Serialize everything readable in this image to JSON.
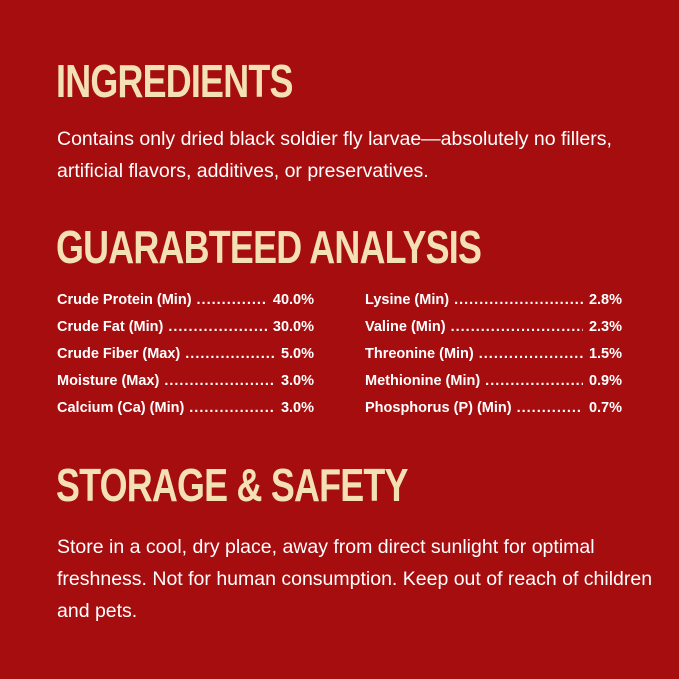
{
  "ingredients": {
    "heading": "INGREDIENTS",
    "text": "Contains only dried black soldier fly larvae—absolutely no fillers, artificial flavors, additives, or preservatives."
  },
  "analysis": {
    "heading": "GUARABTEED ANALYSIS",
    "left": [
      {
        "label": "Crude Protein (Min)",
        "value": "40.0%"
      },
      {
        "label": "Crude Fat (Min)",
        "value": "30.0%"
      },
      {
        "label": "Crude Fiber (Max)",
        "value": "5.0%"
      },
      {
        "label": "Moisture (Max)",
        "value": "3.0%"
      },
      {
        "label": "Calcium (Ca) (Min)",
        "value": "3.0%"
      }
    ],
    "right": [
      {
        "label": "Lysine (Min)",
        "value": "2.8%"
      },
      {
        "label": "Valine (Min)",
        "value": "2.3%"
      },
      {
        "label": "Threonine (Min)",
        "value": "1.5%"
      },
      {
        "label": "Methionine (Min)",
        "value": "0.9%"
      },
      {
        "label": "Phosphorus (P) (Min)",
        "value": "0.7%"
      }
    ]
  },
  "storage": {
    "heading": "STORAGE & SAFETY",
    "text": "Store in a cool, dry place, away from direct sunlight for optimal freshness. Not for human consumption. Keep out of reach of children and pets."
  },
  "colors": {
    "background": "#a60d0f",
    "heading": "#f3e1b3",
    "text": "#ffffff"
  }
}
